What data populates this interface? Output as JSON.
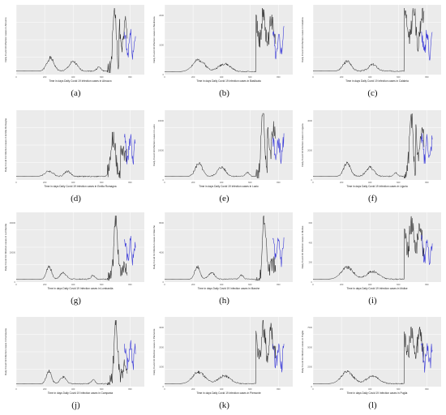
{
  "colors": {
    "history": "#1a1a1a",
    "forecast": "#3b3bd9",
    "panel": "#ebebeb",
    "grid": "#ffffff"
  },
  "chart_data": [
    {
      "type": "line",
      "caption": "(a)",
      "xlabel": "Time in days Daily Covid 19 Infection cases in Abruzzo",
      "ylabel": "Daily Covid 19 Infection cases in Abruzzo",
      "x_ticks": [
        0,
        200,
        400,
        600,
        800
      ],
      "y_ticks": [],
      "profile": "italy",
      "seed": 1
    },
    {
      "type": "line",
      "caption": "(b)",
      "xlabel": "Time in days Daily Covid 19 Infection cases in Basilicata",
      "ylabel": "Daily Covid 19 Infection cases in Basilicata",
      "x_ticks": [
        0,
        200,
        400,
        600,
        800
      ],
      "y_ticks": [
        0,
        1000,
        2000
      ],
      "profile": "noisy",
      "seed": 2
    },
    {
      "type": "line",
      "caption": "(c)",
      "xlabel": "Time in days Daily Covid 19 Infection cases in Calabria",
      "ylabel": "Daily Covid 19 Infection cases in Calabria",
      "x_ticks": [
        0,
        200,
        400,
        600,
        800
      ],
      "y_ticks": [],
      "profile": "bimodal",
      "seed": 3
    },
    {
      "type": "line",
      "caption": "(d)",
      "xlabel": "Time in days Daily Covid 19 Infection cases in Emilia Romagna",
      "ylabel": "Daily Covid 19 Infection cases in Emilia Romagna",
      "x_ticks": [
        0,
        200,
        400,
        600,
        800
      ],
      "y_ticks": [],
      "profile": "late",
      "seed": 4
    },
    {
      "type": "line",
      "caption": "(e)",
      "xlabel": "Time in days Daily Covid 19 Infection cases in Lazio",
      "ylabel": "Daily Covid 19 Infection cases in Lazio",
      "x_ticks": [
        0,
        200,
        400,
        600,
        800
      ],
      "y_ticks": [
        0,
        10000,
        20000
      ],
      "profile": "italy",
      "seed": 5
    },
    {
      "type": "line",
      "caption": "(f)",
      "xlabel": "Time in days Daily Covid 19 Infection cases in Liguria",
      "ylabel": "Daily Covid 19 Infection cases in Liguria",
      "x_ticks": [
        0,
        200,
        400,
        600,
        800
      ],
      "y_ticks": [
        0,
        2000,
        4000
      ],
      "profile": "italy",
      "seed": 6
    },
    {
      "type": "line",
      "caption": "(g)",
      "xlabel": "Time in days Daily Covid 19 Infection cases in Lombardia",
      "ylabel": "Daily Covid 19 Infection cases in Lombardia",
      "x_ticks": [
        0,
        200,
        400,
        600,
        800
      ],
      "y_ticks": [
        0,
        20000,
        40000
      ],
      "profile": "spike",
      "seed": 7
    },
    {
      "type": "line",
      "caption": "(h)",
      "xlabel": "Time in days Daily Covid 19 Infection cases in Marche",
      "ylabel": "Daily Covid 19 Infection cases in Marche",
      "x_ticks": [
        0,
        200,
        400,
        600,
        800
      ],
      "y_ticks": [
        0,
        4000,
        8000
      ],
      "profile": "spike",
      "seed": 8
    },
    {
      "type": "line",
      "caption": "(i)",
      "xlabel": "Time in days Daily Covid 19 Infection cases in Molise",
      "ylabel": "Daily Covid 19 Infection cases in Molise",
      "x_ticks": [
        0,
        200,
        400,
        600,
        800
      ],
      "y_ticks": [
        0,
        200,
        400,
        600
      ],
      "profile": "noisy",
      "seed": 9
    },
    {
      "type": "line",
      "caption": "(j)",
      "xlabel": "Time in days Daily Covid 19 Infection cases in Campania",
      "ylabel": "Daily Covid 19 Infection cases in Campania",
      "x_ticks": [
        0,
        200,
        400,
        600,
        800
      ],
      "y_ticks": [],
      "profile": "spike",
      "seed": 10
    },
    {
      "type": "line",
      "caption": "(k)",
      "xlabel": "Time in days Daily Covid 19 Infection cases in Piemonte",
      "ylabel": "Daily Covid 19 Infection cases in Piemonte",
      "x_ticks": [
        0,
        200,
        400,
        600,
        800
      ],
      "y_ticks": [
        0,
        1000,
        2000,
        3000
      ],
      "profile": "noisy",
      "seed": 11
    },
    {
      "type": "line",
      "caption": "(l)",
      "xlabel": "Time in days Daily Covid 19 Infection cases in Puglia",
      "ylabel": "Daily Covid 19 Infection cases in Puglia",
      "x_ticks": [
        0,
        200,
        400,
        600,
        800
      ],
      "y_ticks": [
        0,
        2500,
        5000,
        7500
      ],
      "profile": "noisy",
      "seed": 12
    }
  ]
}
